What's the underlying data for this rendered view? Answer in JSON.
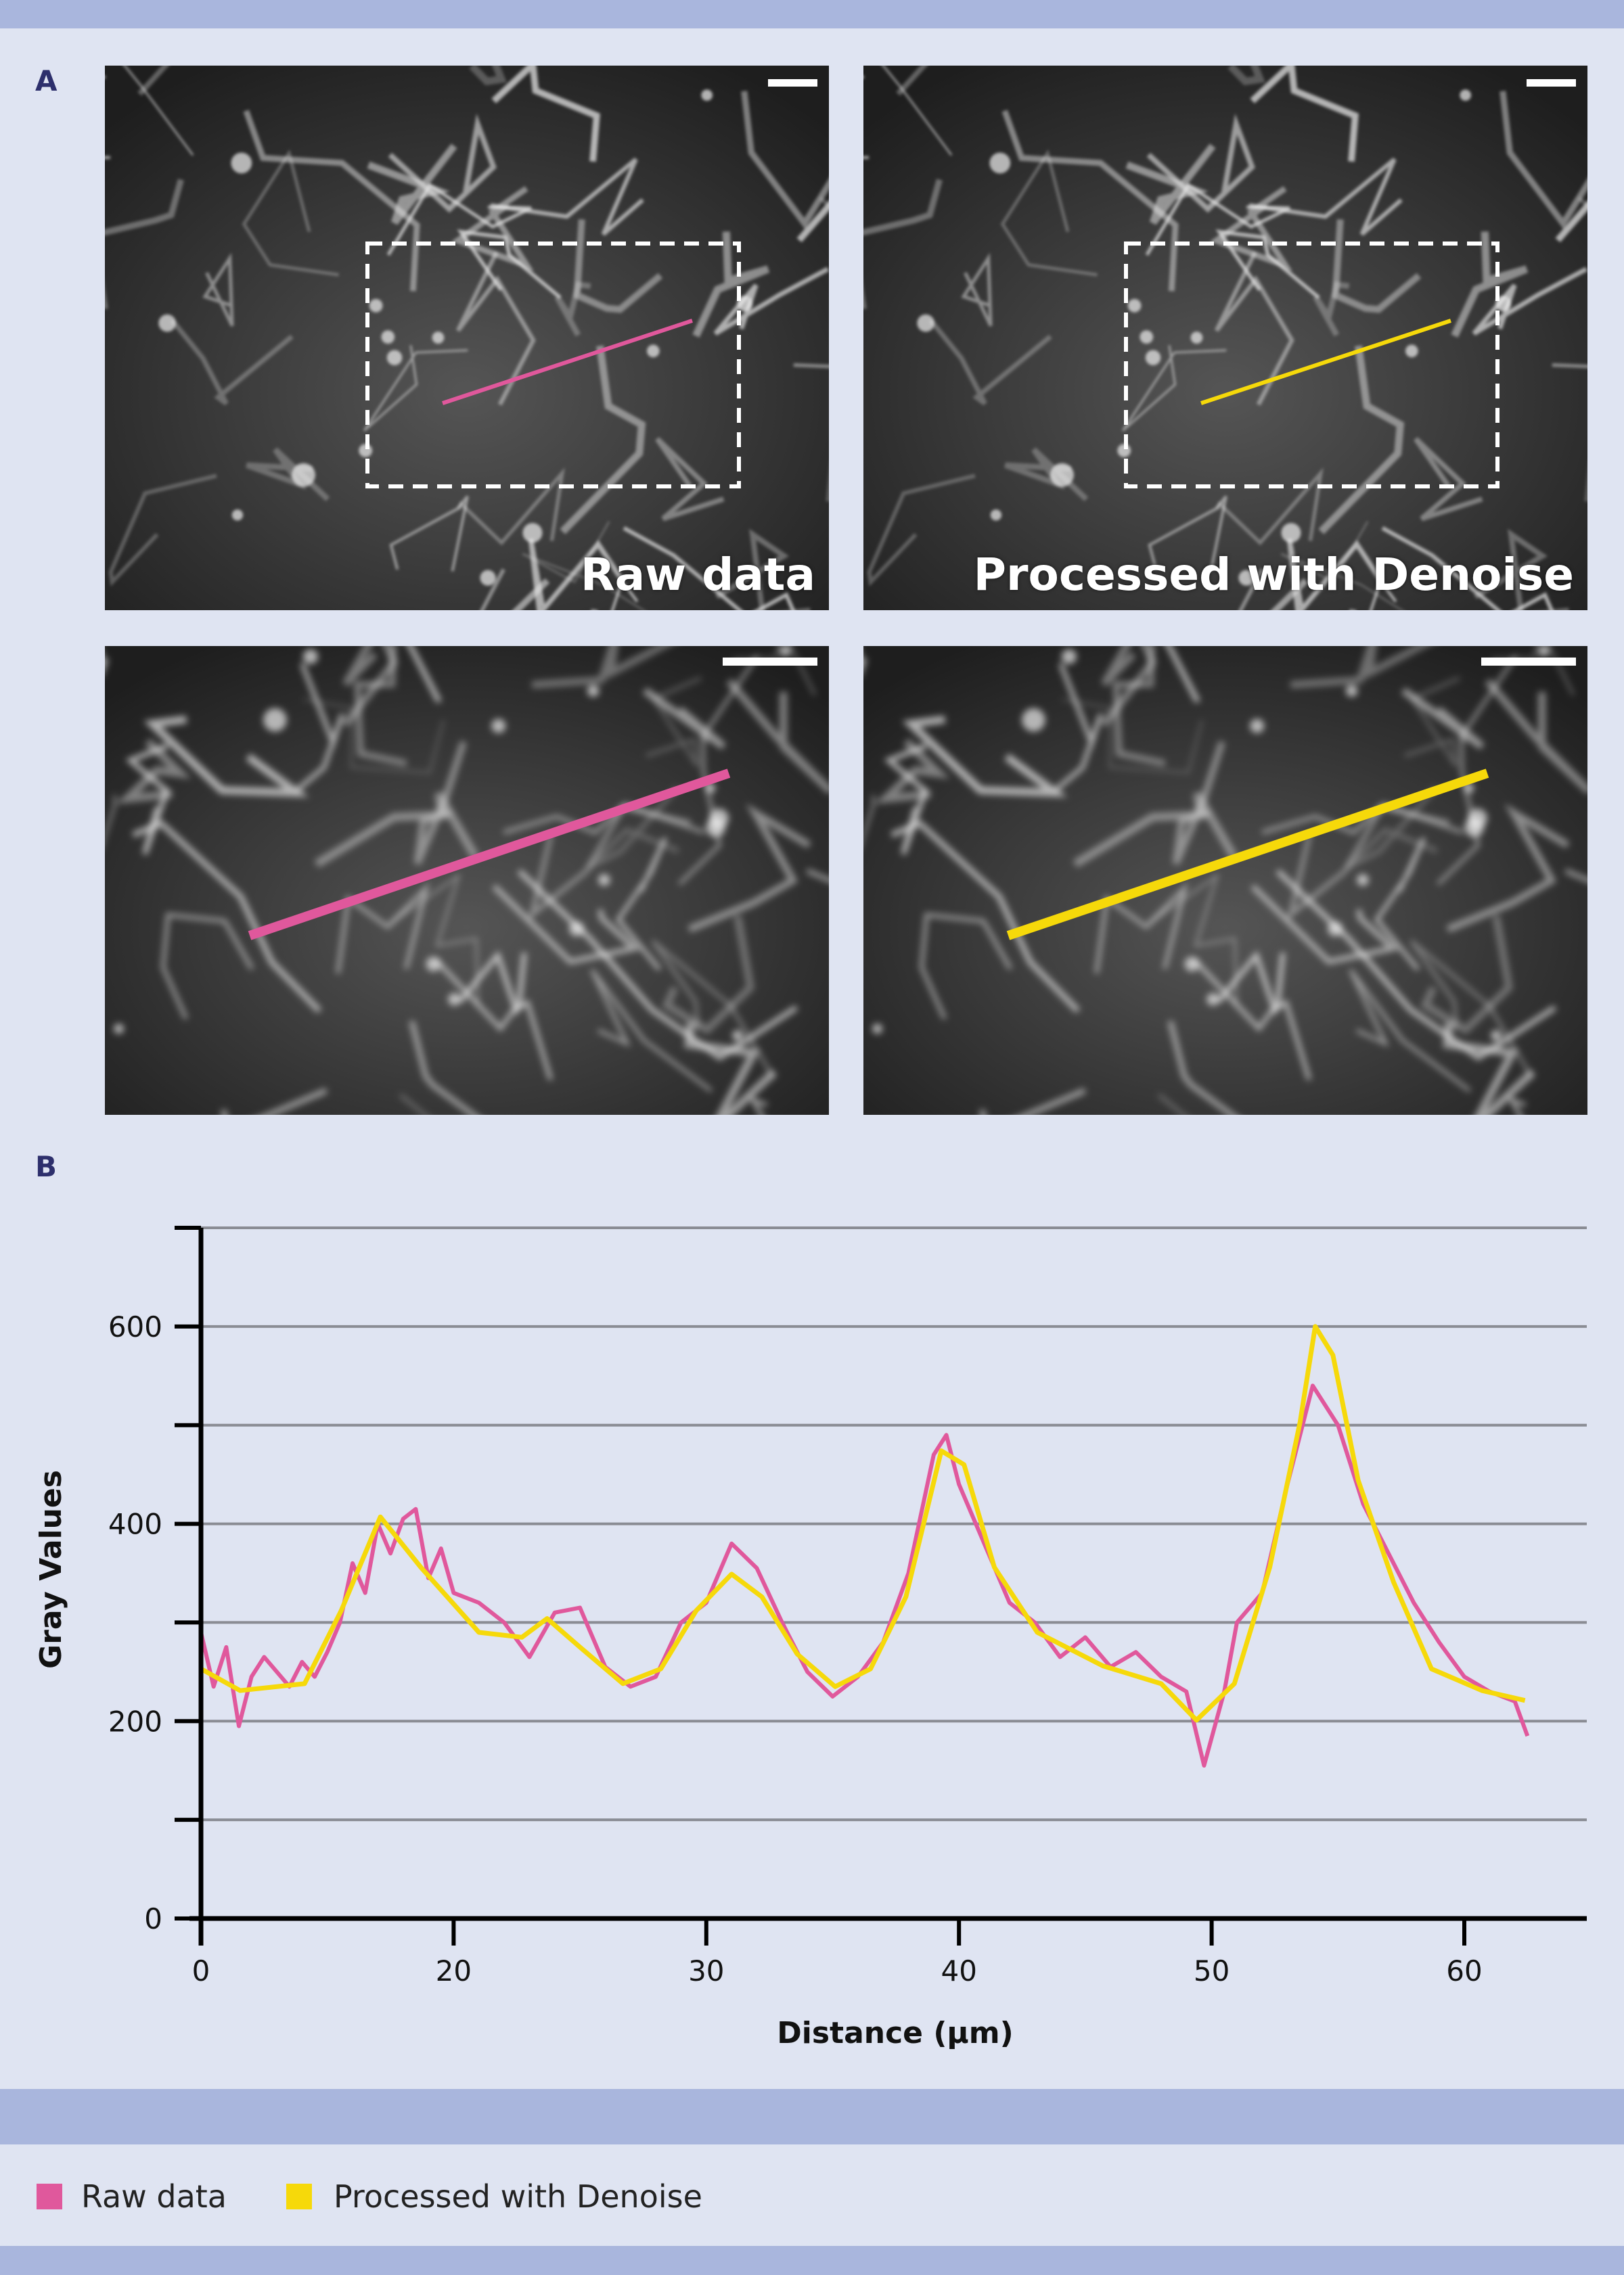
{
  "panels": {
    "a_label": "A",
    "b_label": "B"
  },
  "images": {
    "raw_caption": "Raw data",
    "processed_caption": "Processed with Denoise"
  },
  "colors": {
    "raw": "#e0589c",
    "processed": "#f6d90a",
    "band": "#a9b6dd",
    "background": "#dfe4f2"
  },
  "legend": {
    "raw_label": "Raw data",
    "processed_label": "Processed with Denoise"
  },
  "chart_data": {
    "type": "line",
    "xlabel": "Distance (µm)",
    "ylabel": "Gray Values",
    "ylim": [
      0,
      700
    ],
    "y_ticks": [
      0,
      100,
      200,
      300,
      400,
      500,
      600,
      700
    ],
    "y_tick_labels": [
      "0",
      "200",
      "400",
      "600"
    ],
    "y_tick_label_values": [
      0,
      200,
      400,
      600
    ],
    "x_tick_labels": [
      "0",
      "20",
      "30",
      "40",
      "50",
      "60"
    ],
    "x_tick_values": [
      0,
      20,
      30,
      40,
      50,
      60
    ],
    "grid": true,
    "legend_position": "bottom",
    "series": [
      {
        "name": "Raw data",
        "x": [
          0,
          1,
          2,
          3,
          4,
          5,
          6,
          7,
          8,
          9,
          10,
          11,
          12,
          13,
          14,
          15,
          16,
          17,
          18,
          19,
          20,
          21,
          22,
          23,
          24,
          25,
          26,
          27,
          28,
          29,
          30,
          31,
          32,
          33,
          34,
          35,
          36,
          37,
          38,
          39,
          39.5,
          40,
          41,
          42,
          43,
          44,
          45,
          46,
          47,
          48,
          49,
          49.7,
          50.5,
          51,
          52,
          53,
          54,
          55,
          56,
          57,
          58,
          59,
          60,
          61,
          62,
          62.5
        ],
        "y": [
          290,
          235,
          275,
          195,
          245,
          265,
          250,
          235,
          260,
          245,
          270,
          300,
          360,
          330,
          400,
          370,
          405,
          415,
          345,
          375,
          330,
          320,
          300,
          265,
          310,
          315,
          255,
          235,
          245,
          300,
          320,
          380,
          355,
          300,
          250,
          225,
          245,
          280,
          350,
          470,
          490,
          440,
          380,
          320,
          300,
          265,
          285,
          255,
          270,
          245,
          230,
          155,
          230,
          300,
          330,
          440,
          540,
          500,
          420,
          370,
          320,
          280,
          245,
          230,
          220,
          185
        ]
      },
      {
        "name": "Processed with Denoise",
        "x": [
          0,
          3.1,
          8.2,
          11.1,
          14.2,
          17.4,
          21.0,
          22.7,
          23.7,
          25.0,
          26.7,
          28.2,
          29.6,
          31.0,
          32.2,
          33.6,
          35.1,
          36.5,
          37.9,
          39.3,
          40.2,
          41.4,
          43.1,
          45.7,
          48.0,
          49.4,
          50.9,
          52.3,
          53.5,
          54.1,
          54.8,
          55.8,
          57.2,
          58.7,
          60.7,
          62.4
        ],
        "y": [
          253,
          231,
          238,
          312,
          407,
          356,
          290,
          285,
          304,
          275,
          238,
          253,
          312,
          349,
          326,
          268,
          235,
          253,
          326,
          474,
          460,
          356,
          290,
          256,
          238,
          201,
          238,
          356,
          503,
          600,
          571,
          444,
          341,
          253,
          231,
          221
        ]
      }
    ]
  }
}
